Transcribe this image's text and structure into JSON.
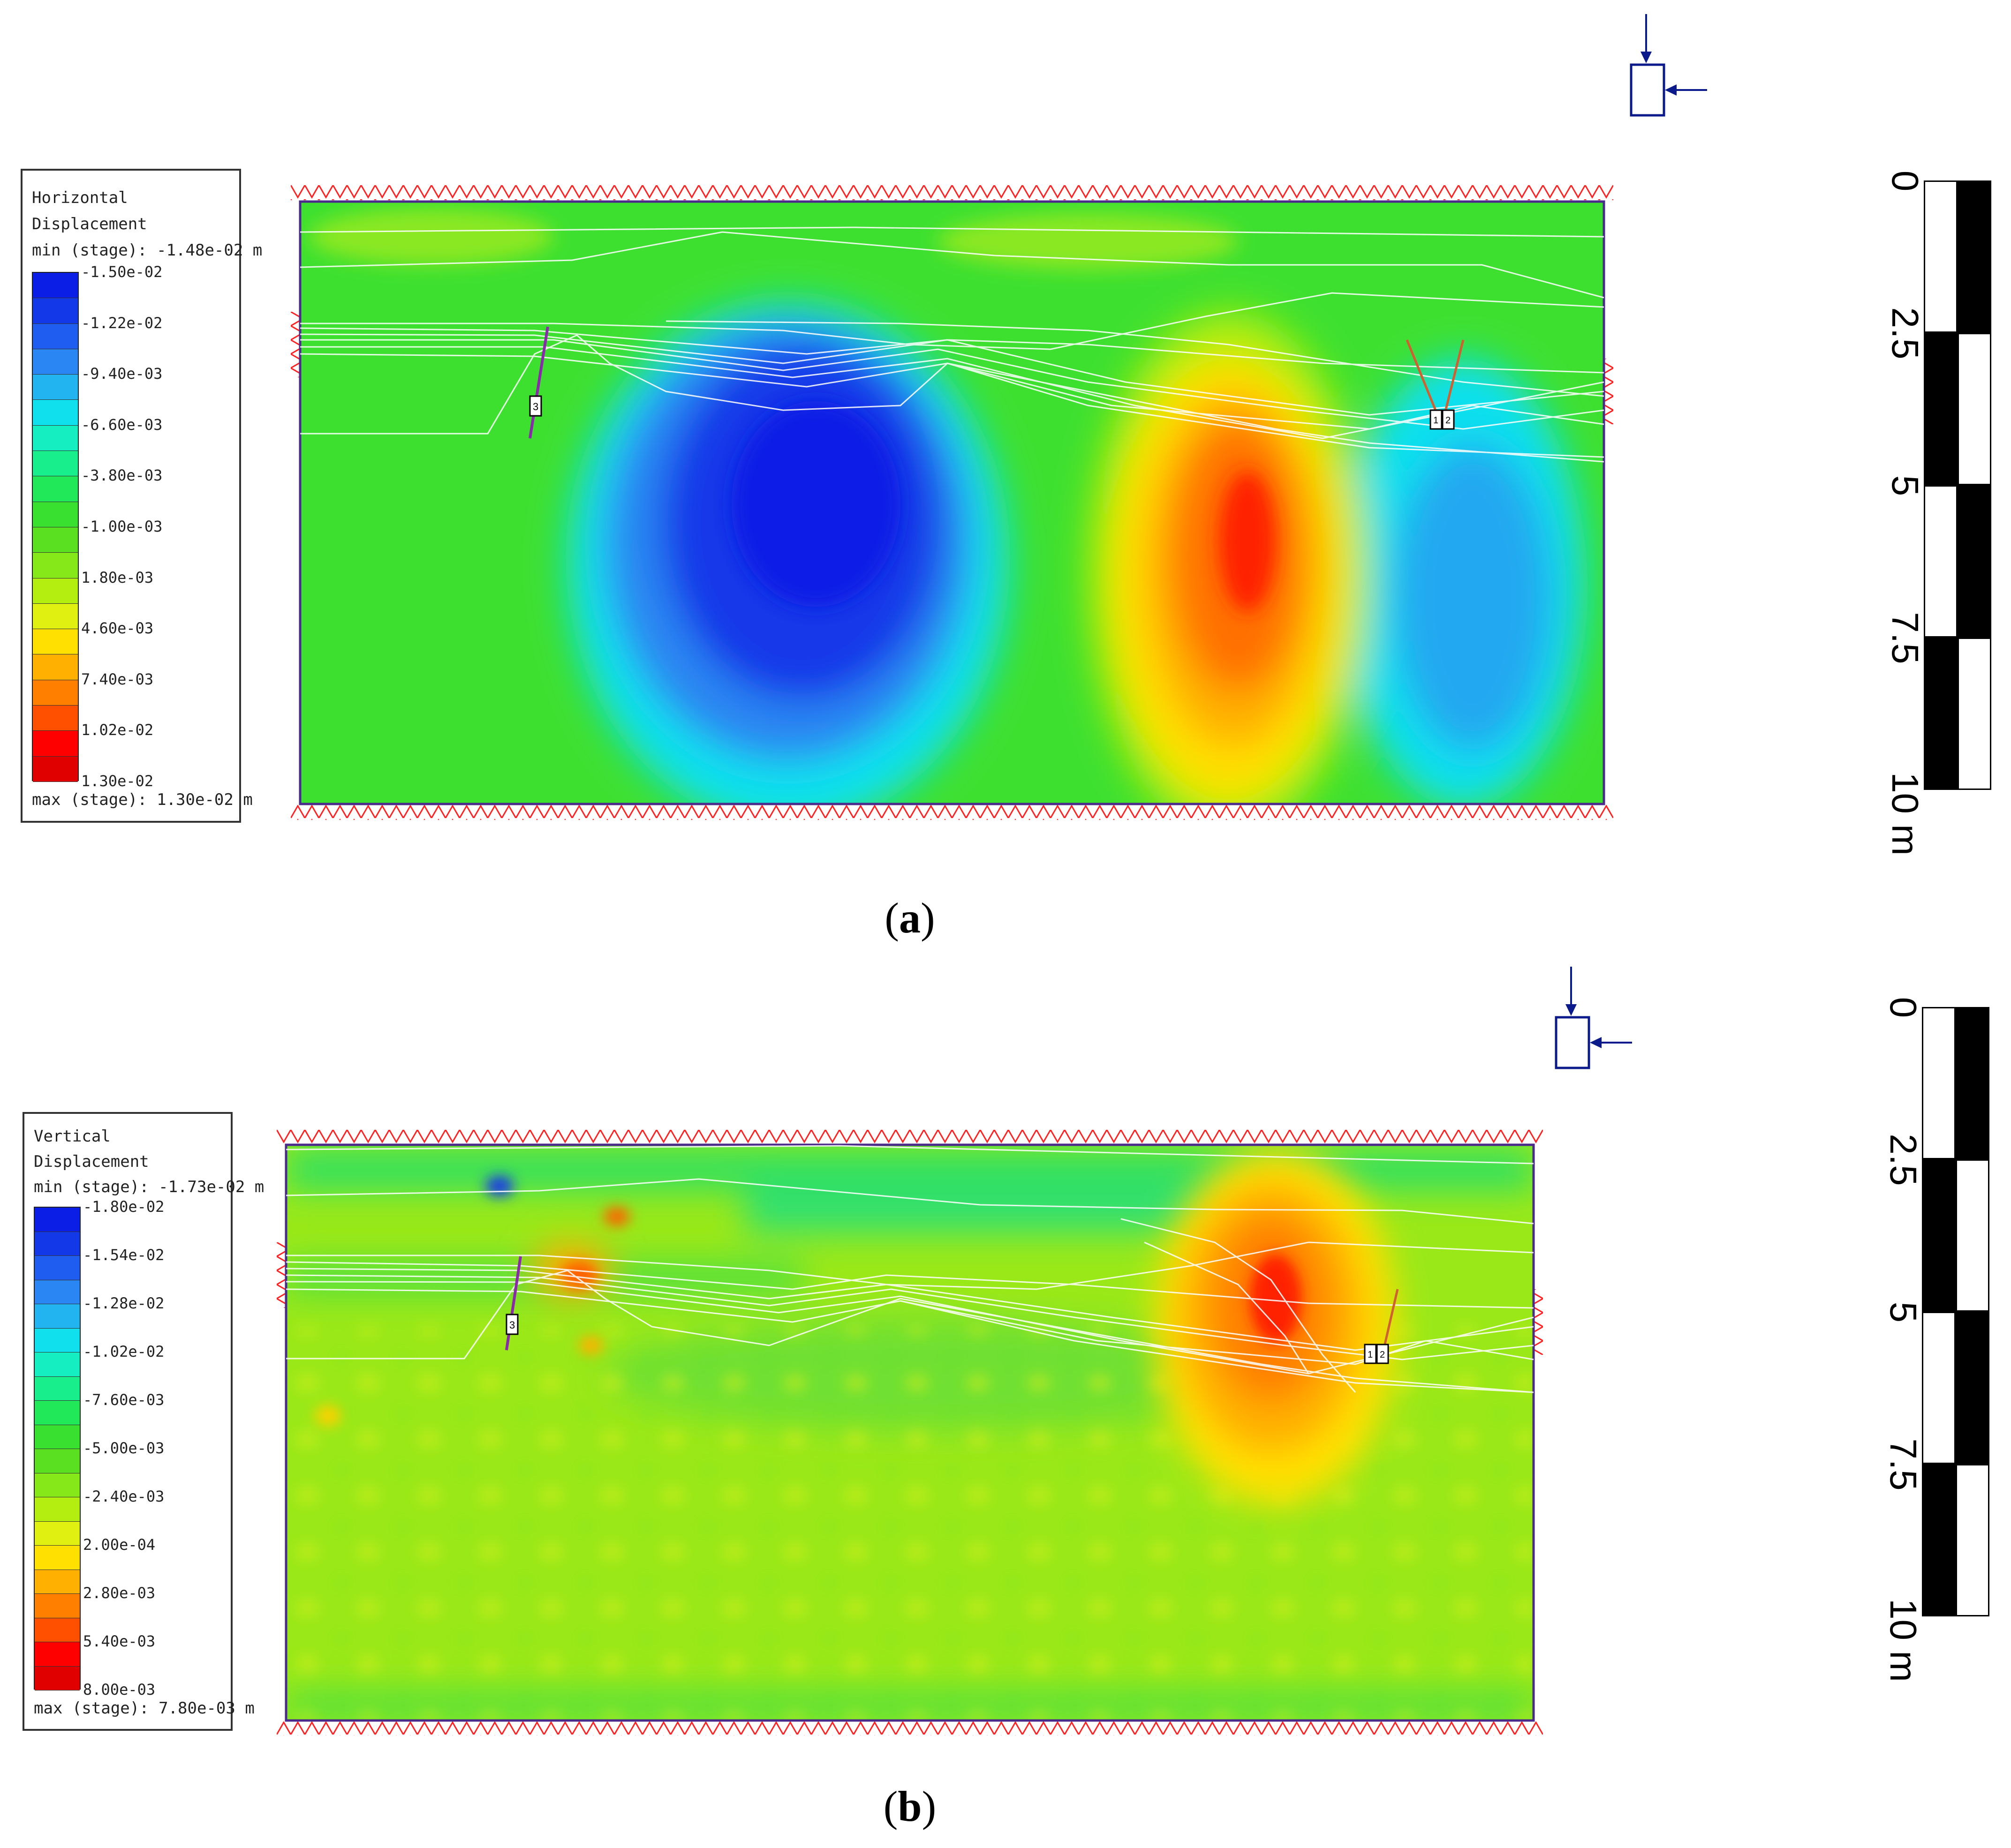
{
  "panels": [
    {
      "id": "a",
      "caption_letter": "a",
      "legend": {
        "title_line1": "Horizontal",
        "title_line2": "Displacement",
        "min_label": "min (stage): -1.48e-02 m",
        "max_label": "max (stage): 1.30e-02 m",
        "ticks": [
          "-1.50e-02",
          "-1.22e-02",
          "-9.40e-03",
          "-6.60e-03",
          "-3.80e-03",
          "-1.00e-03",
          "1.80e-03",
          "4.60e-03",
          "7.40e-03",
          "1.02e-02",
          "1.30e-02"
        ],
        "colors": [
          "#0a1ee6",
          "#1238e8",
          "#1f5cf0",
          "#2a86f2",
          "#22b4f0",
          "#10e0ee",
          "#14eec0",
          "#18ee8c",
          "#20e858",
          "#3ae030",
          "#5ae020",
          "#86e818",
          "#b4ee10",
          "#e0f010",
          "#ffe000",
          "#ffb000",
          "#ff8000",
          "#ff5000",
          "#ff0000",
          "#e00000"
        ]
      },
      "scale": {
        "labels": [
          "0",
          "2.5",
          "5",
          "7.5",
          "10 m"
        ]
      },
      "support_labels": [
        "3",
        "1",
        "2"
      ]
    },
    {
      "id": "b",
      "caption_letter": "b",
      "legend": {
        "title_line1": "Vertical",
        "title_line2": "Displacement",
        "min_label": "min (stage): -1.73e-02 m",
        "max_label": "max (stage): 7.80e-03 m",
        "ticks": [
          "-1.80e-02",
          "-1.54e-02",
          "-1.28e-02",
          "-1.02e-02",
          "-7.60e-03",
          "-5.00e-03",
          "-2.40e-03",
          "2.00e-04",
          "2.80e-03",
          "5.40e-03",
          "8.00e-03"
        ],
        "colors": [
          "#0a1ee6",
          "#1238e8",
          "#1f5cf0",
          "#2a86f2",
          "#22b4f0",
          "#10e0ee",
          "#14eec0",
          "#18ee8c",
          "#20e858",
          "#3ae030",
          "#5ae020",
          "#86e818",
          "#b4ee10",
          "#e0f010",
          "#ffe000",
          "#ffb000",
          "#ff8000",
          "#ff5000",
          "#ff0000",
          "#e00000"
        ]
      },
      "scale": {
        "labels": [
          "0",
          "2.5",
          "5",
          "7.5",
          "10 m"
        ]
      },
      "support_labels": [
        "3",
        "1",
        "2"
      ]
    }
  ]
}
